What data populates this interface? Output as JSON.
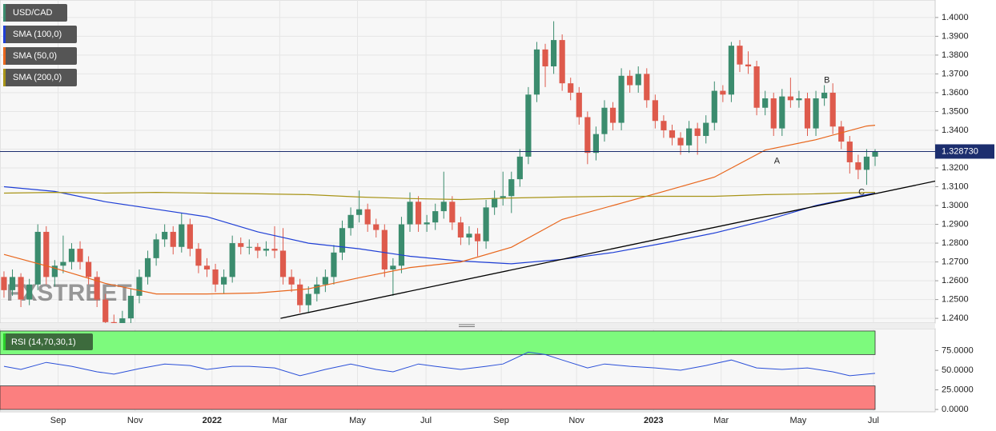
{
  "chart_data": {
    "type": "candlestick",
    "title": "USD/CAD",
    "title_color": "#3b8c6e",
    "up_color": "#3b8c6e",
    "down_color": "#de5a4c",
    "candles": [
      [
        1.262,
        1.265,
        1.251,
        1.255
      ],
      [
        1.255,
        1.266,
        1.252,
        1.262
      ],
      [
        1.262,
        1.264,
        1.246,
        1.25
      ],
      [
        1.25,
        1.261,
        1.247,
        1.258
      ],
      [
        1.258,
        1.29,
        1.255,
        1.286
      ],
      [
        1.286,
        1.289,
        1.258,
        1.262
      ],
      [
        1.262,
        1.271,
        1.257,
        1.268
      ],
      [
        1.268,
        1.284,
        1.264,
        1.27
      ],
      [
        1.27,
        1.28,
        1.266,
        1.277
      ],
      [
        1.277,
        1.281,
        1.266,
        1.27
      ],
      [
        1.27,
        1.273,
        1.258,
        1.262
      ],
      [
        1.262,
        1.265,
        1.246,
        1.25
      ],
      [
        1.25,
        1.253,
        1.234,
        1.238
      ],
      [
        1.238,
        1.242,
        1.232,
        1.236
      ],
      [
        1.236,
        1.244,
        1.232,
        1.24
      ],
      [
        1.24,
        1.256,
        1.237,
        1.252
      ],
      [
        1.252,
        1.266,
        1.248,
        1.262
      ],
      [
        1.262,
        1.276,
        1.258,
        1.272
      ],
      [
        1.272,
        1.285,
        1.268,
        1.282
      ],
      [
        1.282,
        1.29,
        1.278,
        1.286
      ],
      [
        1.286,
        1.289,
        1.274,
        1.278
      ],
      [
        1.278,
        1.296,
        1.275,
        1.29
      ],
      [
        1.29,
        1.293,
        1.273,
        1.277
      ],
      [
        1.277,
        1.28,
        1.264,
        1.268
      ],
      [
        1.268,
        1.272,
        1.262,
        1.266
      ],
      [
        1.266,
        1.269,
        1.254,
        1.258
      ],
      [
        1.258,
        1.266,
        1.253,
        1.262
      ],
      [
        1.262,
        1.284,
        1.259,
        1.28
      ],
      [
        1.28,
        1.283,
        1.274,
        1.278
      ],
      [
        1.278,
        1.282,
        1.274,
        1.278
      ],
      [
        1.278,
        1.28,
        1.272,
        1.276
      ],
      [
        1.276,
        1.281,
        1.273,
        1.277
      ],
      [
        1.277,
        1.289,
        1.272,
        1.276
      ],
      [
        1.276,
        1.288,
        1.258,
        1.262
      ],
      [
        1.262,
        1.266,
        1.254,
        1.258
      ],
      [
        1.258,
        1.261,
        1.243,
        1.247
      ],
      [
        1.247,
        1.257,
        1.243,
        1.253
      ],
      [
        1.253,
        1.262,
        1.249,
        1.258
      ],
      [
        1.258,
        1.266,
        1.254,
        1.262
      ],
      [
        1.262,
        1.279,
        1.258,
        1.275
      ],
      [
        1.275,
        1.292,
        1.271,
        1.288
      ],
      [
        1.288,
        1.299,
        1.284,
        1.295
      ],
      [
        1.295,
        1.308,
        1.291,
        1.298
      ],
      [
        1.298,
        1.301,
        1.286,
        1.29
      ],
      [
        1.29,
        1.293,
        1.283,
        1.287
      ],
      [
        1.287,
        1.29,
        1.262,
        1.266
      ],
      [
        1.266,
        1.272,
        1.252,
        1.268
      ],
      [
        1.268,
        1.294,
        1.264,
        1.29
      ],
      [
        1.29,
        1.307,
        1.286,
        1.302
      ],
      [
        1.302,
        1.305,
        1.286,
        1.29
      ],
      [
        1.29,
        1.295,
        1.286,
        1.291
      ],
      [
        1.291,
        1.301,
        1.287,
        1.297
      ],
      [
        1.297,
        1.318,
        1.293,
        1.302
      ],
      [
        1.302,
        1.305,
        1.287,
        1.291
      ],
      [
        1.291,
        1.294,
        1.279,
        1.283
      ],
      [
        1.283,
        1.289,
        1.279,
        1.285
      ],
      [
        1.285,
        1.288,
        1.273,
        1.281
      ],
      [
        1.281,
        1.303,
        1.277,
        1.299
      ],
      [
        1.299,
        1.308,
        1.295,
        1.304
      ],
      [
        1.304,
        1.318,
        1.3,
        1.305
      ],
      [
        1.305,
        1.318,
        1.296,
        1.314
      ],
      [
        1.314,
        1.33,
        1.31,
        1.326
      ],
      [
        1.326,
        1.363,
        1.322,
        1.359
      ],
      [
        1.359,
        1.387,
        1.355,
        1.383
      ],
      [
        1.383,
        1.386,
        1.363,
        1.374
      ],
      [
        1.374,
        1.398,
        1.37,
        1.388
      ],
      [
        1.388,
        1.391,
        1.361,
        1.365
      ],
      [
        1.365,
        1.368,
        1.356,
        1.36
      ],
      [
        1.36,
        1.363,
        1.343,
        1.347
      ],
      [
        1.347,
        1.35,
        1.322,
        1.328
      ],
      [
        1.328,
        1.342,
        1.324,
        1.338
      ],
      [
        1.338,
        1.356,
        1.334,
        1.352
      ],
      [
        1.352,
        1.355,
        1.34,
        1.344
      ],
      [
        1.344,
        1.373,
        1.34,
        1.369
      ],
      [
        1.369,
        1.372,
        1.36,
        1.364
      ],
      [
        1.364,
        1.374,
        1.36,
        1.37
      ],
      [
        1.37,
        1.373,
        1.352,
        1.356
      ],
      [
        1.356,
        1.359,
        1.341,
        1.345
      ],
      [
        1.345,
        1.348,
        1.336,
        1.34
      ],
      [
        1.34,
        1.343,
        1.332,
        1.336
      ],
      [
        1.336,
        1.339,
        1.327,
        1.332
      ],
      [
        1.332,
        1.345,
        1.328,
        1.341
      ],
      [
        1.341,
        1.344,
        1.327,
        1.337
      ],
      [
        1.337,
        1.348,
        1.333,
        1.344
      ],
      [
        1.344,
        1.366,
        1.34,
        1.361
      ],
      [
        1.361,
        1.364,
        1.355,
        1.359
      ],
      [
        1.359,
        1.387,
        1.355,
        1.385
      ],
      [
        1.385,
        1.388,
        1.371,
        1.375
      ],
      [
        1.375,
        1.382,
        1.37,
        1.374
      ],
      [
        1.374,
        1.377,
        1.348,
        1.352
      ],
      [
        1.352,
        1.361,
        1.348,
        1.357
      ],
      [
        1.357,
        1.36,
        1.337,
        1.341
      ],
      [
        1.341,
        1.362,
        1.337,
        1.358
      ],
      [
        1.358,
        1.368,
        1.352,
        1.356
      ],
      [
        1.356,
        1.361,
        1.352,
        1.357
      ],
      [
        1.357,
        1.36,
        1.337,
        1.341
      ],
      [
        1.341,
        1.361,
        1.337,
        1.357
      ],
      [
        1.357,
        1.364,
        1.353,
        1.36
      ],
      [
        1.36,
        1.365,
        1.338,
        1.342
      ],
      [
        1.342,
        1.345,
        1.33,
        1.334
      ],
      [
        1.334,
        1.337,
        1.317,
        1.323
      ],
      [
        1.323,
        1.327,
        1.314,
        1.319
      ],
      [
        1.319,
        1.33,
        1.311,
        1.326
      ],
      [
        1.326,
        1.33,
        1.321,
        1.32873
      ]
    ],
    "xlim": [
      -0.47,
      110.1
    ],
    "xticks": [
      {
        "value": 6.4,
        "label": "Sep"
      },
      {
        "value": 15.5,
        "label": "Nov"
      },
      {
        "value": 24.6,
        "label": "2022"
      },
      {
        "value": 32.6,
        "label": "Mar"
      },
      {
        "value": 41.8,
        "label": "May"
      },
      {
        "value": 49.9,
        "label": "Jul"
      },
      {
        "value": 58.8,
        "label": "Sep"
      },
      {
        "value": 67.7,
        "label": "Nov"
      },
      {
        "value": 76.8,
        "label": "2023"
      },
      {
        "value": 84.8,
        "label": "Mar"
      },
      {
        "value": 93.9,
        "label": "May"
      },
      {
        "value": 102.8,
        "label": "Jul"
      }
    ],
    "ylim": [
      1.2375,
      1.4093
    ],
    "yticks": [
      {
        "value": 1.24,
        "label": "1.2400"
      },
      {
        "value": 1.25,
        "label": "1.2500"
      },
      {
        "value": 1.26,
        "label": "1.2600"
      },
      {
        "value": 1.27,
        "label": "1.2700"
      },
      {
        "value": 1.28,
        "label": "1.2800"
      },
      {
        "value": 1.29,
        "label": "1.2900"
      },
      {
        "value": 1.3,
        "label": "1.3000"
      },
      {
        "value": 1.31,
        "label": "1.3100"
      },
      {
        "value": 1.32,
        "label": "1.3200"
      },
      {
        "value": 1.33,
        "label": "1.3300"
      },
      {
        "value": 1.34,
        "label": "1.3400"
      },
      {
        "value": 1.35,
        "label": "1.3500"
      },
      {
        "value": 1.36,
        "label": "1.3600"
      },
      {
        "value": 1.37,
        "label": "1.3700"
      },
      {
        "value": 1.38,
        "label": "1.3800"
      },
      {
        "value": 1.39,
        "label": "1.3900"
      },
      {
        "value": 1.4,
        "label": "1.4000"
      }
    ],
    "grid": true,
    "last": {
      "value": 1.32873,
      "label": "1.328730",
      "color": "#1c2e6e"
    },
    "watermark": "FXSTREET",
    "overlays": [
      {
        "name": "SMA (100,0)",
        "color": "#1f3fd6",
        "x": [
          0,
          6,
          12,
          18,
          24,
          30,
          36,
          42,
          48,
          54,
          60,
          66,
          72,
          78,
          84,
          90,
          96,
          102,
          103
        ],
        "values": [
          1.31,
          1.3075,
          1.302,
          1.298,
          1.294,
          1.286,
          1.28,
          1.277,
          1.273,
          1.2705,
          1.269,
          1.2714,
          1.275,
          1.28,
          1.2854,
          1.292,
          1.3,
          1.3058,
          1.3066
        ]
      },
      {
        "name": "SMA (50,0)",
        "color": "#e8661c",
        "x": [
          0,
          6,
          12,
          18,
          24,
          30,
          36,
          42,
          48,
          54,
          60,
          66,
          72,
          78,
          84,
          90,
          96,
          102,
          103
        ],
        "values": [
          1.274,
          1.2667,
          1.2586,
          1.253,
          1.253,
          1.2535,
          1.2557,
          1.2616,
          1.267,
          1.27,
          1.2778,
          1.2926,
          1.3,
          1.3075,
          1.3151,
          1.3295,
          1.335,
          1.3423,
          1.3427
        ]
      },
      {
        "name": "SMA (200,0)",
        "color": "#a89418",
        "x": [
          0,
          6,
          12,
          18,
          24,
          30,
          36,
          42,
          48,
          54,
          60,
          66,
          72,
          78,
          84,
          90,
          96,
          102,
          103
        ],
        "values": [
          1.3066,
          1.307,
          1.3066,
          1.307,
          1.3066,
          1.3062,
          1.3058,
          1.3045,
          1.3037,
          1.3032,
          1.304,
          1.3045,
          1.3049,
          1.3049,
          1.3049,
          1.3058,
          1.3062,
          1.307,
          1.307
        ]
      }
    ],
    "trendline": {
      "color": "#000000",
      "x": [
        32.7,
        110.1
      ],
      "values": [
        1.24,
        1.313
      ]
    },
    "annotations": [
      "A",
      "B",
      "C"
    ],
    "rsi": {
      "name": "RSI (14,70,30,1)",
      "color": "#2a4fd8",
      "x": [
        0,
        2,
        5,
        8,
        11,
        13,
        16,
        19,
        22,
        24,
        27,
        29,
        32,
        35,
        38,
        41,
        44,
        46,
        49,
        51,
        54,
        57,
        59,
        62,
        64,
        66,
        69,
        71,
        74,
        77,
        80,
        83,
        86,
        89,
        92,
        95,
        98,
        100,
        103
      ],
      "values": [
        55,
        51,
        60,
        55,
        48,
        45,
        52,
        58,
        56,
        51,
        55,
        55,
        53,
        43,
        51,
        58,
        51,
        48,
        58,
        55,
        51,
        55,
        58,
        73,
        70,
        63,
        53,
        58,
        55,
        53,
        50,
        56,
        63,
        53,
        51,
        53,
        48,
        43,
        46
      ],
      "ylim": [
        -3,
        103
      ],
      "yticks": [
        {
          "value": 0,
          "label": "0.0000"
        },
        {
          "value": 25,
          "label": "25.0000"
        },
        {
          "value": 50,
          "label": "50.0000"
        },
        {
          "value": 75,
          "label": "75.0000"
        }
      ],
      "bands": [
        {
          "from": 70,
          "to": 100,
          "color": "#7dfa7d"
        },
        {
          "from": 0,
          "to": 30,
          "color": "#fb7f7f"
        }
      ]
    }
  }
}
